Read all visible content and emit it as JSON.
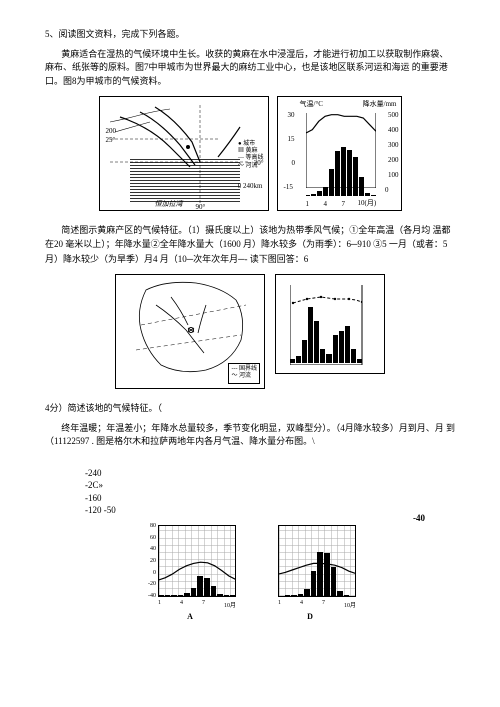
{
  "q5": {
    "header": "5、阅读图文资料，完成下列各题。",
    "para1": "黄麻适合在湿热的气候环境中生长。收获的黄麻在水中浸湿后，才能进行初加工以获取制作麻袋、麻布、纸张等的原料。图7中甲城市为世界最大的麻纺工业中心，也是该地区联系河运和海运  的重要港口。图8为甲城市的气候资料。"
  },
  "figure1": {
    "map": {
      "contour_labels": [
        "200",
        "25°",
        "20°"
      ],
      "river_text": "恒加拉湾",
      "scale": "0    240km",
      "lon": "90°",
      "legend": [
        "城市",
        "黄麻",
        "等高线",
        "河流"
      ]
    },
    "chart": {
      "ylabel_left": "气温/°C",
      "ylabel_right": "降水量/mm",
      "left_ticks": [
        "30",
        "15",
        "0",
        "-15"
      ],
      "right_ticks": [
        "500",
        "400",
        "300",
        "200",
        "100",
        "0"
      ],
      "x_ticks": [
        "1",
        "4",
        "7",
        "10(月)"
      ],
      "bar_values": [
        8,
        15,
        35,
        60,
        180,
        300,
        330,
        310,
        260,
        130,
        20,
        8
      ],
      "temp_curve": [
        18,
        20,
        25,
        28,
        29,
        29,
        28,
        28,
        28,
        27,
        23,
        19
      ]
    }
  },
  "q1": {
    "text": "简述图示黄麻产区的气候特征。（1）摄氏度以上）该地为热带季风气候；①全年高温（各月均 温都在20 毫米以上）；年降水量②全年降水量大（1600 月）降水较多（为雨季）：6─910 ③5 一月（或者：5 月）降水较少（为旱季）月4 月（10─次年次年月─-  读下图回答：6"
  },
  "figure2": {
    "map": {
      "legend_items": [
        "国界线",
        "河流"
      ]
    },
    "chart": {
      "line_top_val": 28,
      "bar_values": [
        10,
        15,
        50,
        120,
        90,
        30,
        20,
        60,
        70,
        80,
        30,
        10
      ]
    }
  },
  "q4": {
    "header": " 4分）简述该地的气候特征。（",
    "text1": "终年温暖；年温差小；年降水总量较多，季节变化明显，双峰型分）。（4月降水较多）月到月、月 到（11122597 . 图是格尔木和拉萨两地年内各月气温、降水量分布图。\\"
  },
  "numbers": {
    "n1": "-240",
    "n2": "-2C»",
    "n3": "-160",
    "n4": "-120 -50",
    "minus40": "-40"
  },
  "figure3": {
    "y_ticks": [
      "80",
      "60",
      "40",
      "20",
      "0",
      "-20",
      "-40"
    ],
    "x_ticks": [
      "1",
      "4",
      "7",
      "10月"
    ],
    "chart_a": {
      "caption": "A",
      "bar_values": [
        2,
        2,
        3,
        3,
        5,
        12,
        28,
        25,
        15,
        4,
        2,
        2
      ],
      "temp_curve": [
        -12,
        -8,
        -2,
        6,
        12,
        16,
        18,
        17,
        12,
        4,
        -5,
        -11
      ]
    },
    "chart_d": {
      "caption": "D",
      "bar_values": [
        1,
        2,
        3,
        4,
        10,
        35,
        60,
        58,
        40,
        8,
        2,
        1
      ],
      "temp_curve": [
        -2,
        1,
        5,
        9,
        13,
        16,
        16,
        15,
        13,
        9,
        3,
        -1
      ]
    }
  }
}
